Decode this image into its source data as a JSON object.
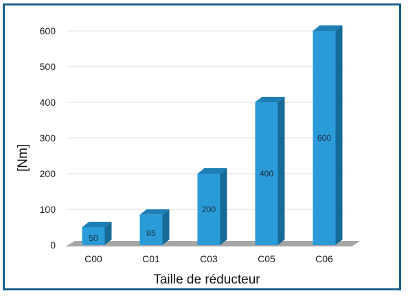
{
  "chart_data": {
    "type": "bar",
    "categories": [
      "C00",
      "C01",
      "C03",
      "C05",
      "C06"
    ],
    "values": [
      50,
      85,
      200,
      400,
      600
    ],
    "data_labels": [
      "50",
      "85",
      "200",
      "400",
      "600"
    ],
    "title": "",
    "xlabel": "Taille de réducteur",
    "ylabel": "[Nm]",
    "ylim": [
      0,
      600
    ],
    "yticks": [
      0,
      100,
      200,
      300,
      400,
      500,
      600
    ],
    "grid": true,
    "style": "3d",
    "colors": {
      "bar_front": "#2a9bd8",
      "bar_top": "#1f7fb5",
      "bar_side": "#166a97",
      "floor": "#a6a6a6",
      "grid": "#dcdcdc",
      "frame": "#1b5f8a"
    }
  }
}
